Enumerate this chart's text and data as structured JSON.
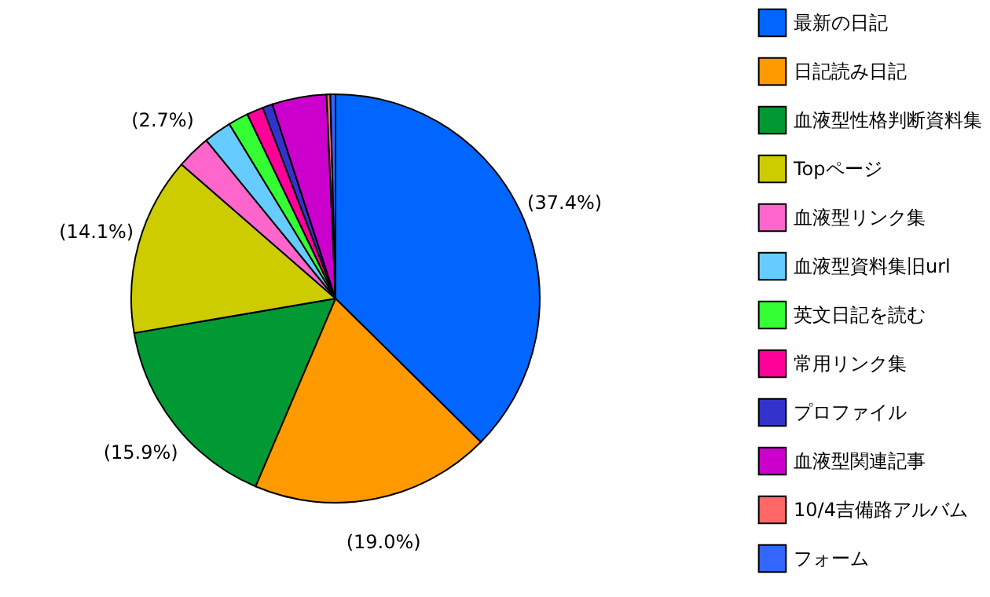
{
  "chart_data": {
    "type": "pie",
    "categories": [
      "最新の日記",
      "日記読み日記",
      "血液型性格判断資料集",
      "Topページ",
      "血液型リンク集",
      "血液型資料集旧url",
      "英文日記を読む",
      "常用リンク集",
      "プロファイル",
      "血液型関連記事",
      "10/4吉備路アルバム",
      "フォーム"
    ],
    "values": [
      37.4,
      19.0,
      15.9,
      14.1,
      2.7,
      2.2,
      1.6,
      1.3,
      0.8,
      4.3,
      0.3,
      0.4
    ],
    "colors": [
      "#0066ff",
      "#ff9900",
      "#009933",
      "#cccc00",
      "#ff66cc",
      "#66ccff",
      "#33ff33",
      "#ff0099",
      "#3333cc",
      "#cc00cc",
      "#ff6666",
      "#3366ff"
    ],
    "value_labels": [
      "(37.4%)",
      "(19.0%)",
      "(15.9%)",
      "(14.1%)",
      "(2.7%)",
      null,
      null,
      null,
      null,
      null,
      null,
      null
    ],
    "legend": "right"
  }
}
